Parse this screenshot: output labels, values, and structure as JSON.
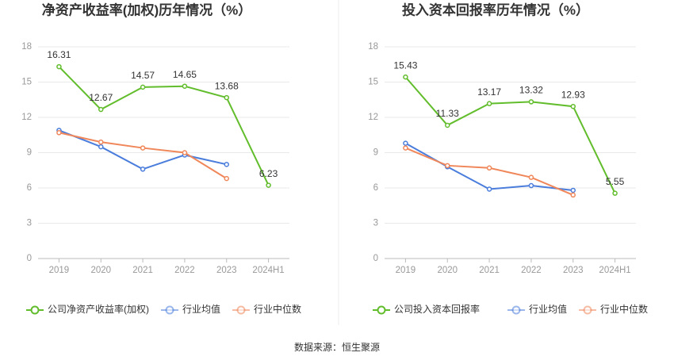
{
  "chart_data": [
    {
      "type": "line",
      "title": "净资产收益率(加权)历年情况（%）",
      "categories": [
        "2019",
        "2020",
        "2021",
        "2022",
        "2023",
        "2024H1"
      ],
      "series": [
        {
          "name": "公司净资产收益率(加权)",
          "color": "#62bd2c",
          "values": [
            16.31,
            12.67,
            14.57,
            14.65,
            13.68,
            6.23
          ]
        },
        {
          "name": "行业均值",
          "color": "#4a7ddc",
          "values": [
            10.9,
            9.5,
            7.6,
            8.8,
            8.0,
            null
          ]
        },
        {
          "name": "行业中位数",
          "color": "#f0875a",
          "values": [
            10.7,
            9.9,
            9.4,
            9.0,
            6.8,
            null
          ]
        }
      ],
      "ylim": [
        0,
        18
      ],
      "yticks": [
        0,
        3,
        6,
        9,
        12,
        15,
        18
      ],
      "grid": true,
      "legend": "bottom"
    },
    {
      "type": "line",
      "title": "投入资本回报率历年情况（%）",
      "categories": [
        "2019",
        "2020",
        "2021",
        "2022",
        "2023",
        "2024H1"
      ],
      "series": [
        {
          "name": "公司投入资本回报率",
          "color": "#62bd2c",
          "values": [
            15.43,
            11.33,
            13.17,
            13.32,
            12.93,
            5.55
          ]
        },
        {
          "name": "行业均值",
          "color": "#4a7ddc",
          "values": [
            9.8,
            7.8,
            5.9,
            6.2,
            5.8,
            null
          ]
        },
        {
          "name": "行业中位数",
          "color": "#f0875a",
          "values": [
            9.4,
            7.9,
            7.7,
            6.9,
            5.4,
            null
          ]
        }
      ],
      "ylim": [
        0,
        18
      ],
      "yticks": [
        0,
        3,
        6,
        9,
        12,
        15,
        18
      ],
      "grid": true,
      "legend": "bottom"
    }
  ],
  "source": "数据来源：恒生聚源"
}
